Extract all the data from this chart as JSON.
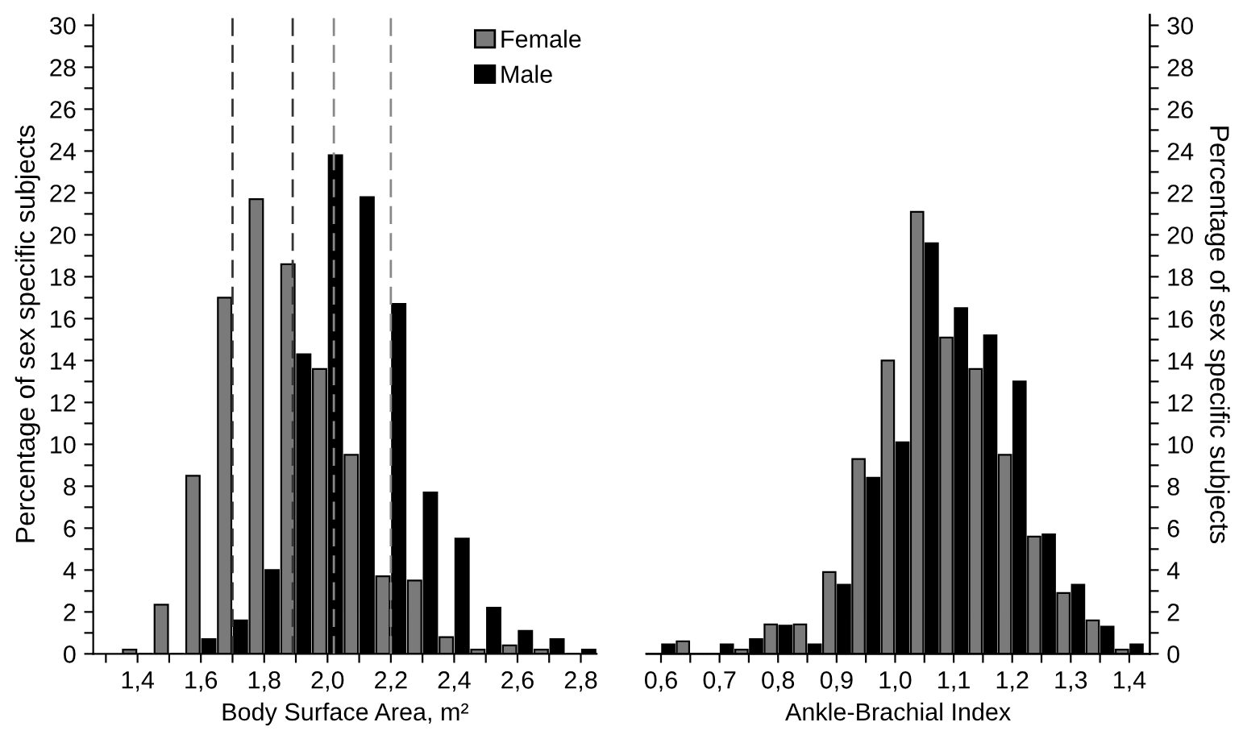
{
  "chart_data": [
    {
      "type": "bar",
      "xlabel": "Body Surface Area, m²",
      "ylabel": "Percentage of sex specific subjects",
      "x": [
        1.4,
        1.5,
        1.6,
        1.7,
        1.8,
        1.9,
        2.0,
        2.1,
        2.2,
        2.3,
        2.4,
        2.5,
        2.6,
        2.7,
        2.8
      ],
      "series": [
        {
          "name": "Female",
          "color": "#7a7a7a",
          "values": [
            0.2,
            2.35,
            8.5,
            17,
            21.7,
            18.6,
            13.6,
            9.5,
            3.7,
            3.5,
            0.8,
            0.2,
            0.4,
            0.2,
            0
          ]
        },
        {
          "name": "Male",
          "color": "#000000",
          "values": [
            0,
            0,
            0.7,
            1.6,
            4,
            14.3,
            23.8,
            21.8,
            16.7,
            7.7,
            5.5,
            2.2,
            1.1,
            0.7,
            0.2
          ]
        }
      ],
      "xlim": [
        1.26,
        2.85
      ],
      "xticks": [
        {
          "value": 1.3,
          "label": null
        },
        {
          "value": 1.4,
          "label": "1,4"
        },
        {
          "value": 1.5,
          "label": null
        },
        {
          "value": 1.6,
          "label": "1,6"
        },
        {
          "value": 1.7,
          "label": null
        },
        {
          "value": 1.8,
          "label": "1,8"
        },
        {
          "value": 1.9,
          "label": null
        },
        {
          "value": 2.0,
          "label": "2,0"
        },
        {
          "value": 2.1,
          "label": null
        },
        {
          "value": 2.2,
          "label": "2,2"
        },
        {
          "value": 2.3,
          "label": null
        },
        {
          "value": 2.4,
          "label": "2,4"
        },
        {
          "value": 2.5,
          "label": null
        },
        {
          "value": 2.6,
          "label": "2,6"
        },
        {
          "value": 2.7,
          "label": null
        },
        {
          "value": 2.8,
          "label": "2,8"
        }
      ],
      "ylim": [
        0,
        30.5
      ],
      "yticks": [
        0,
        {
          "value": 1,
          "label": null
        },
        2,
        {
          "value": 3,
          "label": null
        },
        4,
        {
          "value": 5,
          "label": null
        },
        6,
        {
          "value": 7,
          "label": null
        },
        8,
        {
          "value": 9,
          "label": null
        },
        10,
        {
          "value": 11,
          "label": null
        },
        12,
        {
          "value": 13,
          "label": null
        },
        14,
        {
          "value": 15,
          "label": null
        },
        16,
        {
          "value": 17,
          "label": null
        },
        18,
        {
          "value": 19,
          "label": null
        },
        20,
        {
          "value": 21,
          "label": null
        },
        22,
        {
          "value": 23,
          "label": null
        },
        24,
        {
          "value": 25,
          "label": null
        },
        26,
        {
          "value": 27,
          "label": null
        },
        28,
        {
          "value": 29,
          "label": null
        },
        30
      ],
      "ref_lines": [
        {
          "axis": "x",
          "value": 1.7,
          "color": "#333333",
          "line_style": "dashed"
        },
        {
          "axis": "x",
          "value": 1.89,
          "color": "#333333",
          "line_style": "dashed"
        },
        {
          "axis": "x",
          "value": 2.02,
          "color": "#888888",
          "line_style": "dashed"
        },
        {
          "axis": "x",
          "value": 2.2,
          "color": "#888888",
          "line_style": "dashed"
        }
      ],
      "legend": "top right",
      "grid": false
    },
    {
      "type": "bar",
      "xlabel": "Ankle-Brachial Index",
      "y2label": "Percentage of sex specific subjects",
      "x": [
        0.6,
        0.65,
        0.7,
        0.75,
        0.8,
        0.85,
        0.9,
        0.95,
        1.0,
        1.05,
        1.1,
        1.15,
        1.2,
        1.25,
        1.3,
        1.35,
        1.4
      ],
      "series": [
        {
          "color": "#7a7a7a",
          "axis": "y2",
          "values": [
            0,
            0.6,
            0,
            0.2,
            1.4,
            1.4,
            3.9,
            9.3,
            14,
            21.1,
            15.1,
            13.6,
            9.5,
            5.6,
            2.9,
            1.6,
            0.2
          ]
        },
        {
          "color": "#000000",
          "axis": "y2",
          "values": [
            0.45,
            0,
            0.45,
            0.7,
            1.35,
            0.45,
            3.3,
            8.4,
            10.1,
            19.6,
            16.5,
            15.2,
            13,
            5.7,
            3.3,
            1.3,
            0.45
          ]
        }
      ],
      "xlim": [
        0.575,
        1.435
      ],
      "xticks": [
        {
          "value": 0.6,
          "label": "0,6"
        },
        {
          "value": 0.65,
          "label": null
        },
        {
          "value": 0.7,
          "label": "0,7"
        },
        {
          "value": 0.75,
          "label": null
        },
        {
          "value": 0.8,
          "label": "0,8"
        },
        {
          "value": 0.85,
          "label": null
        },
        {
          "value": 0.9,
          "label": "0,9"
        },
        {
          "value": 0.95,
          "label": null
        },
        {
          "value": 1.0,
          "label": "1,0"
        },
        {
          "value": 1.05,
          "label": null
        },
        {
          "value": 1.1,
          "label": "1,1"
        },
        {
          "value": 1.15,
          "label": null
        },
        {
          "value": 1.2,
          "label": "1,2"
        },
        {
          "value": 1.25,
          "label": null
        },
        {
          "value": 1.3,
          "label": "1,3"
        },
        {
          "value": 1.35,
          "label": null
        },
        {
          "value": 1.4,
          "label": "1,4"
        }
      ],
      "y2lim": [
        0,
        30.5
      ],
      "y2ticks": [
        0,
        {
          "value": 1,
          "label": null
        },
        2,
        {
          "value": 3,
          "label": null
        },
        4,
        {
          "value": 5,
          "label": null
        },
        6,
        {
          "value": 7,
          "label": null
        },
        8,
        {
          "value": 9,
          "label": null
        },
        10,
        {
          "value": 11,
          "label": null
        },
        12,
        {
          "value": 13,
          "label": null
        },
        14,
        {
          "value": 15,
          "label": null
        },
        16,
        {
          "value": 17,
          "label": null
        },
        18,
        {
          "value": 19,
          "label": null
        },
        20,
        {
          "value": 21,
          "label": null
        },
        22,
        {
          "value": 23,
          "label": null
        },
        24,
        {
          "value": 25,
          "label": null
        },
        26,
        {
          "value": 27,
          "label": null
        },
        28,
        {
          "value": 29,
          "label": null
        },
        30
      ],
      "grid": false
    }
  ]
}
